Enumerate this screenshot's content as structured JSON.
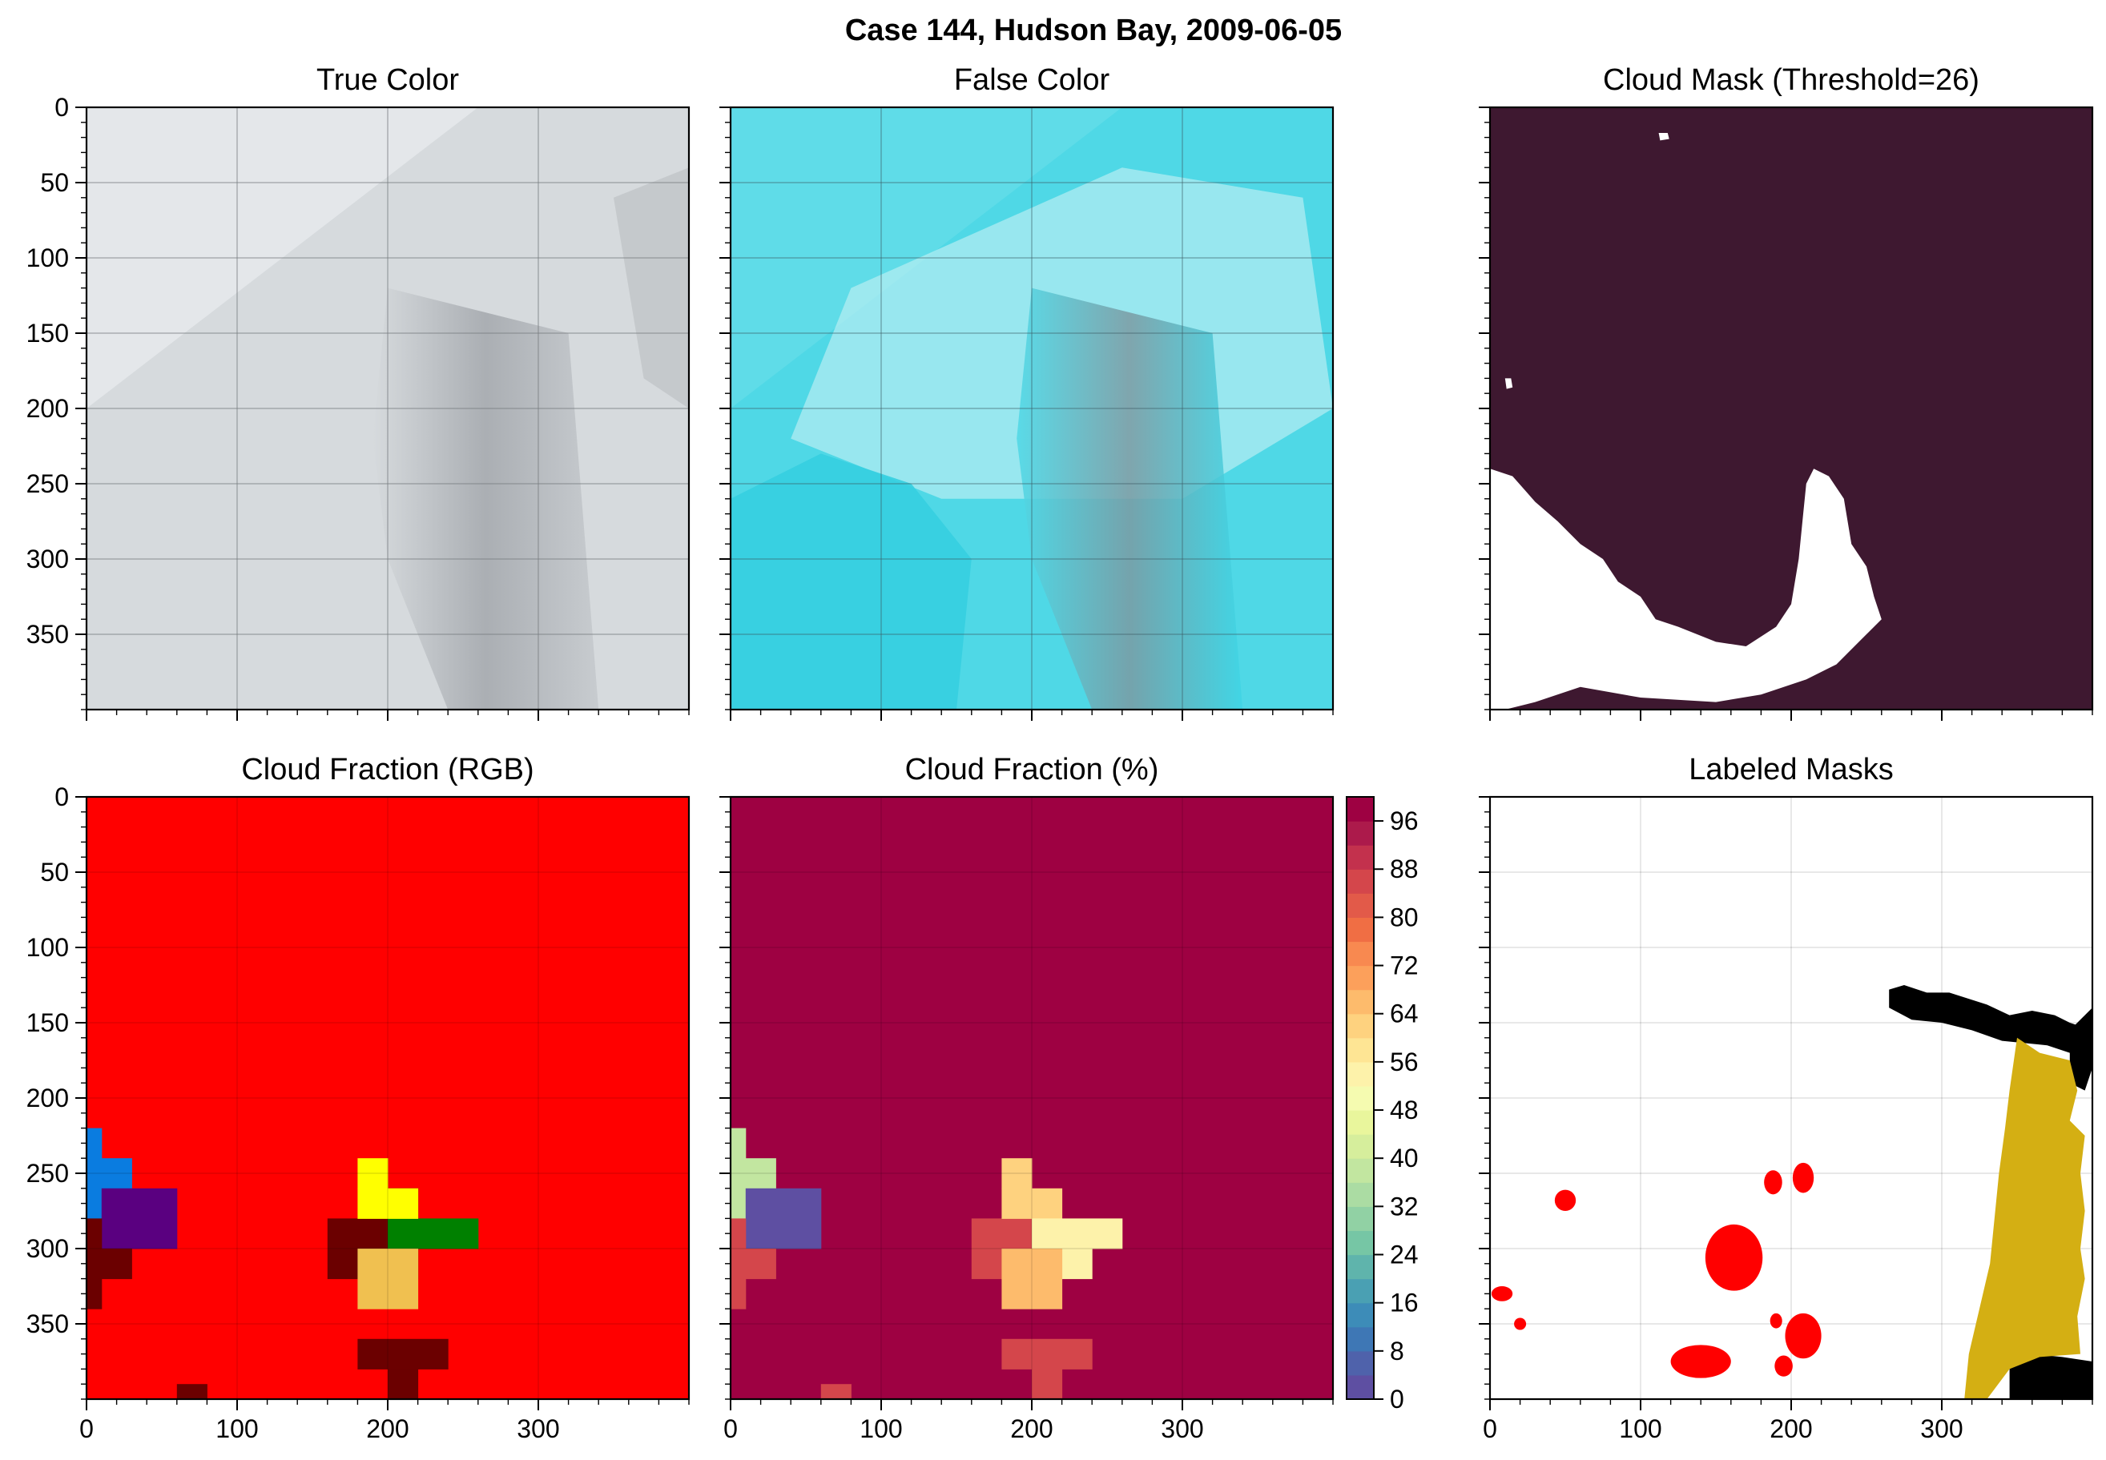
{
  "figure": {
    "title": "Case 144, Hudson Bay, 2009-06-05"
  },
  "chart_data": [
    {
      "id": "true-color",
      "type": "heatmap",
      "title": "True Color",
      "xlim": [
        0,
        400
      ],
      "ylim": [
        400,
        0
      ],
      "yticks": [
        0,
        50,
        100,
        150,
        200,
        250,
        300,
        350
      ],
      "xticks": [],
      "grid": true,
      "colors": {
        "base": "#d6dadd",
        "dark": "#8a8e94",
        "light": "#e4e7ea"
      },
      "description_values": {
        "swath_edge": [
          [
            0,
            200
          ],
          [
            260,
            0
          ]
        ],
        "dark_region_x": [
          200,
          330
        ]
      }
    },
    {
      "id": "false-color",
      "type": "heatmap",
      "title": "False Color",
      "xlim": [
        0,
        400
      ],
      "ylim": [
        400,
        0
      ],
      "yticks": [],
      "xticks": [],
      "grid": true,
      "colors": {
        "base": "#4fd8e6",
        "light": "#b8eef2",
        "dark": "#6f8f98"
      }
    },
    {
      "id": "cloud-mask",
      "type": "heatmap",
      "title": "Cloud Mask (Threshold=26)",
      "xlim": [
        0,
        400
      ],
      "ylim": [
        400,
        0
      ],
      "yticks": [],
      "xticks": [],
      "grid": false,
      "colors": {
        "background": "#3e1830",
        "mask": "#ffffff"
      },
      "regions": [
        {
          "name": "left-mask",
          "polygon": [
            [
              0,
              240
            ],
            [
              15,
              245
            ],
            [
              30,
              262
            ],
            [
              45,
              275
            ],
            [
              60,
              290
            ],
            [
              75,
              300
            ],
            [
              85,
              315
            ],
            [
              100,
              325
            ],
            [
              110,
              340
            ],
            [
              125,
              345
            ],
            [
              150,
              355
            ],
            [
              170,
              358
            ],
            [
              190,
              345
            ],
            [
              200,
              330
            ],
            [
              205,
              300
            ],
            [
              208,
              270
            ],
            [
              210,
              250
            ],
            [
              215,
              240
            ],
            [
              225,
              245
            ],
            [
              235,
              260
            ],
            [
              240,
              290
            ],
            [
              250,
              305
            ],
            [
              255,
              325
            ],
            [
              260,
              340
            ],
            [
              245,
              355
            ],
            [
              230,
              370
            ],
            [
              210,
              380
            ],
            [
              180,
              390
            ],
            [
              150,
              395
            ],
            [
              100,
              392
            ],
            [
              60,
              385
            ],
            [
              30,
              395
            ],
            [
              10,
              400
            ],
            [
              0,
              400
            ]
          ]
        },
        {
          "name": "small-top",
          "polygon": [
            [
              112,
              17
            ],
            [
              118,
              17
            ],
            [
              119,
              21
            ],
            [
              113,
              22
            ]
          ]
        },
        {
          "name": "small-left",
          "polygon": [
            [
              10,
              180
            ],
            [
              14,
              180
            ],
            [
              15,
              186
            ],
            [
              11,
              187
            ]
          ]
        }
      ]
    },
    {
      "id": "cloud-fraction-rgb",
      "type": "heatmap",
      "title": "Cloud Fraction (RGB)",
      "xlim": [
        0,
        400
      ],
      "ylim": [
        400,
        0
      ],
      "yticks": [
        0,
        50,
        100,
        150,
        200,
        250,
        300,
        350
      ],
      "xticks": [
        0,
        100,
        200,
        300
      ],
      "grid": true,
      "cell_size": 20,
      "background": "#ff0000",
      "cells": [
        {
          "x": 0,
          "y": 220,
          "w": 10,
          "h": 60,
          "color": "#0a7ce0"
        },
        {
          "x": 10,
          "y": 240,
          "w": 20,
          "h": 40,
          "color": "#0a7ce0"
        },
        {
          "x": 10,
          "y": 260,
          "w": 50,
          "h": 40,
          "color": "#5a0080"
        },
        {
          "x": 0,
          "y": 280,
          "w": 10,
          "h": 60,
          "color": "#6b0000"
        },
        {
          "x": 10,
          "y": 300,
          "w": 20,
          "h": 20,
          "color": "#6b0000"
        },
        {
          "x": 160,
          "y": 280,
          "w": 40,
          "h": 40,
          "color": "#6b0000"
        },
        {
          "x": 180,
          "y": 240,
          "w": 20,
          "h": 20,
          "color": "#ffff00"
        },
        {
          "x": 180,
          "y": 260,
          "w": 20,
          "h": 20,
          "color": "#ffff00"
        },
        {
          "x": 200,
          "y": 260,
          "w": 20,
          "h": 60,
          "color": "#008000"
        },
        {
          "x": 220,
          "y": 280,
          "w": 40,
          "h": 20,
          "color": "#008000"
        },
        {
          "x": 200,
          "y": 260,
          "w": 20,
          "h": 20,
          "color": "#ffff00"
        },
        {
          "x": 180,
          "y": 300,
          "w": 40,
          "h": 40,
          "color": "#f0c050"
        },
        {
          "x": 180,
          "y": 360,
          "w": 60,
          "h": 20,
          "color": "#6b0000"
        },
        {
          "x": 200,
          "y": 380,
          "w": 20,
          "h": 20,
          "color": "#6b0000"
        },
        {
          "x": 60,
          "y": 390,
          "w": 20,
          "h": 10,
          "color": "#6b0000"
        }
      ]
    },
    {
      "id": "cloud-fraction-pct",
      "type": "heatmap",
      "title": "Cloud Fraction (%)",
      "xlim": [
        0,
        400
      ],
      "ylim": [
        400,
        0
      ],
      "yticks": [],
      "xticks": [
        0,
        100,
        200,
        300
      ],
      "grid": true,
      "background_value": 100,
      "cells": [
        {
          "x": 0,
          "y": 220,
          "w": 10,
          "h": 60,
          "value": 36
        },
        {
          "x": 10,
          "y": 240,
          "w": 20,
          "h": 40,
          "value": 36
        },
        {
          "x": 10,
          "y": 260,
          "w": 50,
          "h": 40,
          "value": 2
        },
        {
          "x": 0,
          "y": 280,
          "w": 10,
          "h": 60,
          "value": 86
        },
        {
          "x": 10,
          "y": 300,
          "w": 20,
          "h": 20,
          "value": 86
        },
        {
          "x": 160,
          "y": 280,
          "w": 40,
          "h": 40,
          "value": 86
        },
        {
          "x": 180,
          "y": 240,
          "w": 20,
          "h": 20,
          "value": 60
        },
        {
          "x": 180,
          "y": 260,
          "w": 20,
          "h": 20,
          "value": 60
        },
        {
          "x": 200,
          "y": 260,
          "w": 20,
          "h": 20,
          "value": 60
        },
        {
          "x": 200,
          "y": 280,
          "w": 20,
          "h": 40,
          "value": 52
        },
        {
          "x": 220,
          "y": 280,
          "w": 40,
          "h": 20,
          "value": 52
        },
        {
          "x": 220,
          "y": 300,
          "w": 20,
          "h": 20,
          "value": 52
        },
        {
          "x": 180,
          "y": 300,
          "w": 40,
          "h": 40,
          "value": 66
        },
        {
          "x": 180,
          "y": 360,
          "w": 60,
          "h": 20,
          "value": 86
        },
        {
          "x": 200,
          "y": 380,
          "w": 20,
          "h": 20,
          "value": 86
        },
        {
          "x": 60,
          "y": 390,
          "w": 20,
          "h": 10,
          "value": 86
        }
      ],
      "colorbar": {
        "levels": [
          0,
          4,
          8,
          12,
          16,
          20,
          24,
          28,
          32,
          36,
          40,
          44,
          48,
          52,
          56,
          60,
          64,
          68,
          72,
          76,
          80,
          84,
          88,
          92,
          96,
          100
        ],
        "tick_labels": [
          "0",
          "8",
          "16",
          "24",
          "32",
          "40",
          "48",
          "56",
          "64",
          "72",
          "80",
          "88",
          "96"
        ],
        "colors": [
          "#5e4fa2",
          "#4f62ab",
          "#3e77b5",
          "#3d8cb8",
          "#4aa0b3",
          "#5fb4ac",
          "#76c6a5",
          "#91d1a4",
          "#abdca3",
          "#c2e6a0",
          "#d6ee9c",
          "#e9f69c",
          "#f5fbb0",
          "#fdf2aa",
          "#fee594",
          "#fed27f",
          "#fdbb6c",
          "#fca05b",
          "#f88950",
          "#f06e44",
          "#e25a49",
          "#d4464b",
          "#c3314d",
          "#ac1a4b",
          "#9e0142"
        ]
      }
    },
    {
      "id": "labeled-masks",
      "type": "heatmap",
      "title": "Labeled Masks",
      "xlim": [
        0,
        400
      ],
      "ylim": [
        400,
        0
      ],
      "yticks": [],
      "xticks": [
        0,
        100,
        200,
        300
      ],
      "grid": true,
      "colors": {
        "background": "#ffffff",
        "black": "#000000",
        "red": "#ff0000",
        "gold": "#d4af13"
      },
      "regions": [
        {
          "name": "black-top",
          "color": "#000000",
          "polygon": [
            [
              265,
              128
            ],
            [
              275,
              125
            ],
            [
              290,
              130
            ],
            [
              305,
              130
            ],
            [
              330,
              138
            ],
            [
              345,
              145
            ],
            [
              360,
              142
            ],
            [
              375,
              145
            ],
            [
              385,
              150
            ],
            [
              400,
              155
            ],
            [
              400,
              180
            ],
            [
              385,
              170
            ],
            [
              370,
              165
            ],
            [
              340,
              162
            ],
            [
              320,
              155
            ],
            [
              300,
              150
            ],
            [
              280,
              148
            ],
            [
              265,
              140
            ]
          ]
        },
        {
          "name": "black-right",
          "color": "#000000",
          "polygon": [
            [
              385,
              155
            ],
            [
              400,
              140
            ],
            [
              400,
              180
            ],
            [
              395,
              195
            ],
            [
              385,
              190
            ]
          ]
        },
        {
          "name": "black-bottom",
          "color": "#000000",
          "polygon": [
            [
              345,
              380
            ],
            [
              360,
              370
            ],
            [
              380,
              372
            ],
            [
              400,
              375
            ],
            [
              400,
              400
            ],
            [
              345,
              400
            ]
          ]
        },
        {
          "name": "gold-right",
          "color": "#d4af13",
          "polygon": [
            [
              350,
              160
            ],
            [
              365,
              170
            ],
            [
              385,
              175
            ],
            [
              390,
              195
            ],
            [
              385,
              215
            ],
            [
              395,
              225
            ],
            [
              392,
              250
            ],
            [
              395,
              275
            ],
            [
              392,
              300
            ],
            [
              395,
              320
            ],
            [
              390,
              345
            ],
            [
              392,
              370
            ],
            [
              365,
              372
            ],
            [
              345,
              380
            ],
            [
              330,
              400
            ],
            [
              315,
              400
            ],
            [
              318,
              370
            ],
            [
              325,
              340
            ],
            [
              332,
              310
            ],
            [
              335,
              280
            ],
            [
              338,
              250
            ],
            [
              342,
              220
            ],
            [
              345,
              195
            ]
          ]
        },
        {
          "name": "red-a",
          "color": "#ff0000",
          "ellipse": [
            50,
            268,
            7,
            7
          ]
        },
        {
          "name": "red-b",
          "color": "#ff0000",
          "ellipse": [
            8,
            330,
            7,
            5
          ]
        },
        {
          "name": "red-c",
          "color": "#ff0000",
          "ellipse": [
            20,
            350,
            4,
            4
          ]
        },
        {
          "name": "red-d",
          "color": "#ff0000",
          "ellipse": [
            162,
            306,
            19,
            22
          ]
        },
        {
          "name": "red-e",
          "color": "#ff0000",
          "ellipse": [
            140,
            375,
            20,
            11
          ]
        },
        {
          "name": "red-f",
          "color": "#ff0000",
          "ellipse": [
            188,
            256,
            6,
            8
          ]
        },
        {
          "name": "red-g",
          "color": "#ff0000",
          "ellipse": [
            208,
            253,
            7,
            10
          ]
        },
        {
          "name": "red-h",
          "color": "#ff0000",
          "ellipse": [
            195,
            378,
            6,
            7
          ]
        },
        {
          "name": "red-i",
          "color": "#ff0000",
          "ellipse": [
            208,
            358,
            12,
            15
          ]
        },
        {
          "name": "red-j",
          "color": "#ff0000",
          "ellipse": [
            190,
            348,
            4,
            5
          ]
        }
      ]
    }
  ]
}
